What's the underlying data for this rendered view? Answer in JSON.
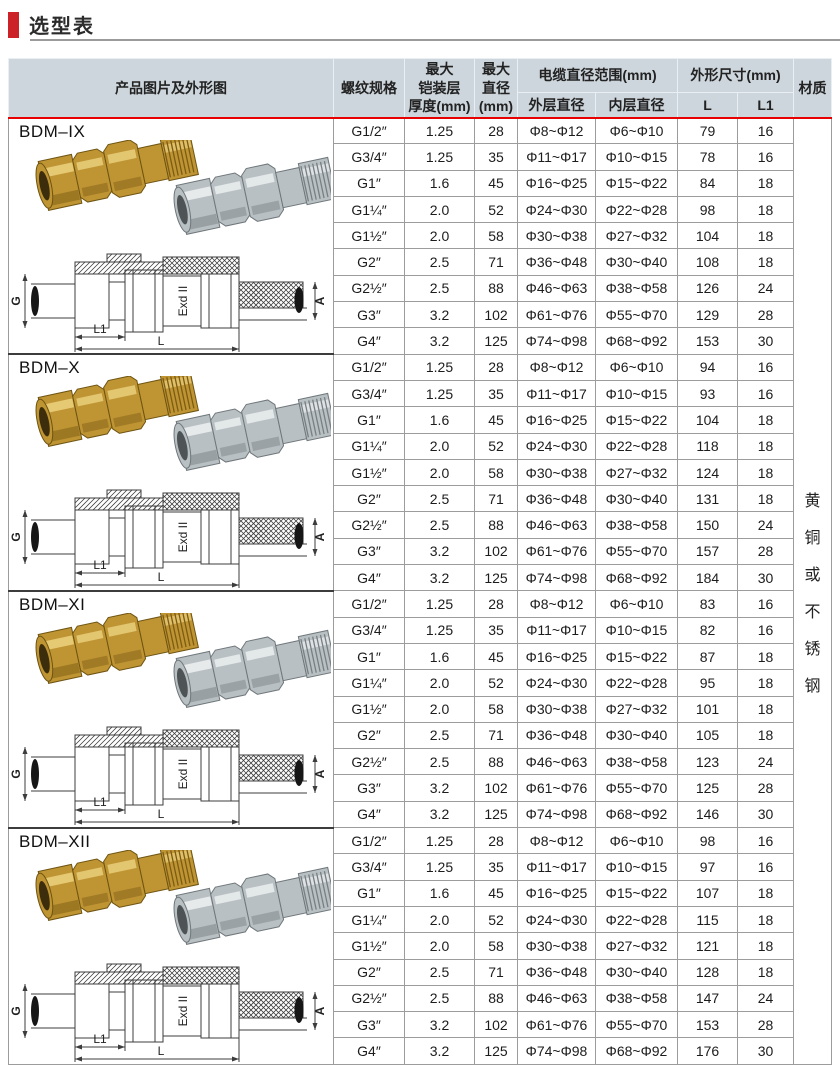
{
  "title": {
    "text": "选型表"
  },
  "table": {
    "header": {
      "product": "产品图片及外形图",
      "thread": "螺纹规格",
      "armor_lines": [
        "最大",
        "铠装层",
        "厚度(mm)"
      ],
      "max_dia_lines": [
        "最大",
        "直径",
        "(mm)"
      ],
      "cable_range": "电缆直径范围(mm)",
      "outer_dia": "外层直径",
      "inner_dia": "内层直径",
      "overall": "外形尺寸(mm)",
      "l": "L",
      "l1": "L1",
      "material": "材质"
    },
    "material_vertical": [
      "黄",
      "铜",
      "或",
      "不",
      "锈",
      "钢"
    ],
    "drawing_labels": {
      "g": "G",
      "exd": "Exd II",
      "a": "A",
      "l1": "L1",
      "l": "L"
    },
    "groups": [
      {
        "model": "BDM–IX",
        "rows": [
          [
            "G1/2″",
            "1.25",
            "28",
            "Φ8~Φ12",
            "Φ6~Φ10",
            "79",
            "16"
          ],
          [
            "G3/4″",
            "1.25",
            "35",
            "Φ11~Φ17",
            "Φ10~Φ15",
            "78",
            "16"
          ],
          [
            "G1″",
            "1.6",
            "45",
            "Φ16~Φ25",
            "Φ15~Φ22",
            "84",
            "18"
          ],
          [
            "G1¼″",
            "2.0",
            "52",
            "Φ24~Φ30",
            "Φ22~Φ28",
            "98",
            "18"
          ],
          [
            "G1½″",
            "2.0",
            "58",
            "Φ30~Φ38",
            "Φ27~Φ32",
            "104",
            "18"
          ],
          [
            "G2″",
            "2.5",
            "71",
            "Φ36~Φ48",
            "Φ30~Φ40",
            "108",
            "18"
          ],
          [
            "G2½″",
            "2.5",
            "88",
            "Φ46~Φ63",
            "Φ38~Φ58",
            "126",
            "24"
          ],
          [
            "G3″",
            "3.2",
            "102",
            "Φ61~Φ76",
            "Φ55~Φ70",
            "129",
            "28"
          ],
          [
            "G4″",
            "3.2",
            "125",
            "Φ74~Φ98",
            "Φ68~Φ92",
            "153",
            "30"
          ]
        ]
      },
      {
        "model": "BDM–X",
        "rows": [
          [
            "G1/2″",
            "1.25",
            "28",
            "Φ8~Φ12",
            "Φ6~Φ10",
            "94",
            "16"
          ],
          [
            "G3/4″",
            "1.25",
            "35",
            "Φ11~Φ17",
            "Φ10~Φ15",
            "93",
            "16"
          ],
          [
            "G1″",
            "1.6",
            "45",
            "Φ16~Φ25",
            "Φ15~Φ22",
            "104",
            "18"
          ],
          [
            "G1¼″",
            "2.0",
            "52",
            "Φ24~Φ30",
            "Φ22~Φ28",
            "118",
            "18"
          ],
          [
            "G1½″",
            "2.0",
            "58",
            "Φ30~Φ38",
            "Φ27~Φ32",
            "124",
            "18"
          ],
          [
            "G2″",
            "2.5",
            "71",
            "Φ36~Φ48",
            "Φ30~Φ40",
            "131",
            "18"
          ],
          [
            "G2½″",
            "2.5",
            "88",
            "Φ46~Φ63",
            "Φ38~Φ58",
            "150",
            "24"
          ],
          [
            "G3″",
            "3.2",
            "102",
            "Φ61~Φ76",
            "Φ55~Φ70",
            "157",
            "28"
          ],
          [
            "G4″",
            "3.2",
            "125",
            "Φ74~Φ98",
            "Φ68~Φ92",
            "184",
            "30"
          ]
        ]
      },
      {
        "model": "BDM–XI",
        "rows": [
          [
            "G1/2″",
            "1.25",
            "28",
            "Φ8~Φ12",
            "Φ6~Φ10",
            "83",
            "16"
          ],
          [
            "G3/4″",
            "1.25",
            "35",
            "Φ11~Φ17",
            "Φ10~Φ15",
            "82",
            "16"
          ],
          [
            "G1″",
            "1.6",
            "45",
            "Φ16~Φ25",
            "Φ15~Φ22",
            "87",
            "18"
          ],
          [
            "G1¼″",
            "2.0",
            "52",
            "Φ24~Φ30",
            "Φ22~Φ28",
            "95",
            "18"
          ],
          [
            "G1½″",
            "2.0",
            "58",
            "Φ30~Φ38",
            "Φ27~Φ32",
            "101",
            "18"
          ],
          [
            "G2″",
            "2.5",
            "71",
            "Φ36~Φ48",
            "Φ30~Φ40",
            "105",
            "18"
          ],
          [
            "G2½″",
            "2.5",
            "88",
            "Φ46~Φ63",
            "Φ38~Φ58",
            "123",
            "24"
          ],
          [
            "G3″",
            "3.2",
            "102",
            "Φ61~Φ76",
            "Φ55~Φ70",
            "125",
            "28"
          ],
          [
            "G4″",
            "3.2",
            "125",
            "Φ74~Φ98",
            "Φ68~Φ92",
            "146",
            "30"
          ]
        ]
      },
      {
        "model": "BDM–XII",
        "rows": [
          [
            "G1/2″",
            "1.25",
            "28",
            "Φ8~Φ12",
            "Φ6~Φ10",
            "98",
            "16"
          ],
          [
            "G3/4″",
            "1.25",
            "35",
            "Φ11~Φ17",
            "Φ10~Φ15",
            "97",
            "16"
          ],
          [
            "G1″",
            "1.6",
            "45",
            "Φ16~Φ25",
            "Φ15~Φ22",
            "107",
            "18"
          ],
          [
            "G1¼″",
            "2.0",
            "52",
            "Φ24~Φ30",
            "Φ22~Φ28",
            "115",
            "18"
          ],
          [
            "G1½″",
            "2.0",
            "58",
            "Φ30~Φ38",
            "Φ27~Φ32",
            "121",
            "18"
          ],
          [
            "G2″",
            "2.5",
            "71",
            "Φ36~Φ48",
            "Φ30~Φ40",
            "128",
            "18"
          ],
          [
            "G2½″",
            "2.5",
            "88",
            "Φ46~Φ63",
            "Φ38~Φ58",
            "147",
            "24"
          ],
          [
            "G3″",
            "3.2",
            "102",
            "Φ61~Φ76",
            "Φ55~Φ70",
            "153",
            "28"
          ],
          [
            "G4″",
            "3.2",
            "125",
            "Φ74~Φ98",
            "Φ68~Φ92",
            "176",
            "30"
          ]
        ]
      }
    ]
  },
  "colors": {
    "accent_red": "#e60000",
    "title_red": "#cc2127",
    "header_bg": "#cdd6dc"
  }
}
